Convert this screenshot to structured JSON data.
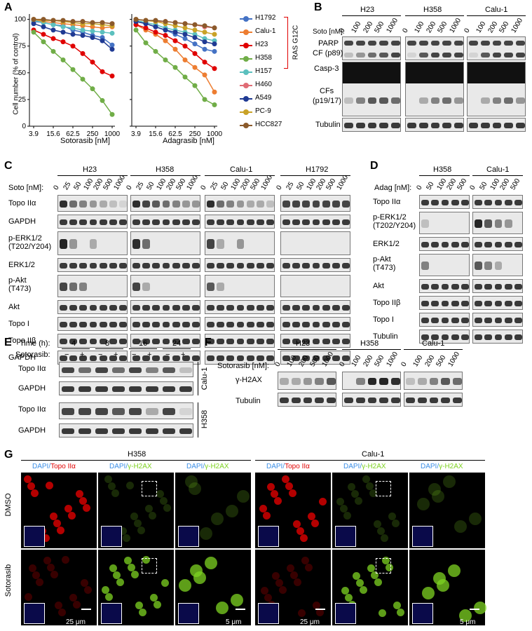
{
  "panel_labels": {
    "A": "A",
    "B": "B",
    "C": "C",
    "D": "D",
    "E": "E",
    "F": "F",
    "G": "G"
  },
  "chart_data": [
    {
      "type": "line",
      "xlabel": "Sotorasib [nM]",
      "ylabel": "Cell number (% of control)",
      "x": [
        3.9,
        7.8,
        15.6,
        31.3,
        62.5,
        125,
        250,
        500,
        1000
      ],
      "xticks": [
        "3.9",
        "15.6",
        "62.5",
        "250",
        "1000"
      ],
      "yticks": [
        "0",
        "25",
        "50",
        "75",
        "100"
      ],
      "ylim": [
        0,
        105
      ],
      "series": [
        {
          "name": "H1792",
          "color": "#4472c4",
          "values": [
            98,
            97,
            95,
            94,
            90,
            88,
            85,
            83,
            76
          ]
        },
        {
          "name": "Calu-1",
          "color": "#ed7d31",
          "values": [
            99,
            98,
            97,
            96,
            95,
            94,
            93,
            92,
            93
          ]
        },
        {
          "name": "H23",
          "color": "#e00000",
          "values": [
            90,
            86,
            82,
            79,
            75,
            68,
            60,
            51,
            47
          ]
        },
        {
          "name": "H358",
          "color": "#70ad47",
          "values": [
            88,
            79,
            70,
            62,
            53,
            44,
            35,
            24,
            11
          ]
        },
        {
          "name": "H157",
          "color": "#5bc0be",
          "values": [
            99,
            97,
            95,
            93,
            92,
            90,
            89,
            88,
            87
          ]
        },
        {
          "name": "H460",
          "color": "#e06c75",
          "values": [
            100,
            99,
            99,
            98,
            98,
            98,
            97,
            97,
            96
          ]
        },
        {
          "name": "A549",
          "color": "#1f3a93",
          "values": [
            96,
            93,
            90,
            88,
            86,
            85,
            83,
            80,
            72
          ]
        },
        {
          "name": "PC-9",
          "color": "#c9a227",
          "values": [
            100,
            99,
            99,
            98,
            97,
            96,
            96,
            95,
            94
          ]
        },
        {
          "name": "HCC827",
          "color": "#8b5a2b",
          "values": [
            100,
            100,
            99,
            99,
            98,
            98,
            97,
            97,
            96
          ]
        }
      ]
    },
    {
      "type": "line",
      "xlabel": "Adagrasib [nM]",
      "x": [
        3.9,
        7.8,
        15.6,
        31.3,
        62.5,
        125,
        250,
        500,
        1000
      ],
      "xticks": [
        "3.9",
        "15.6",
        "62.5",
        "250",
        "1000"
      ],
      "ylim": [
        0,
        105
      ],
      "series": [
        {
          "name": "H1792",
          "color": "#4472c4",
          "values": [
            98,
            96,
            93,
            90,
            86,
            82,
            77,
            72,
            70
          ]
        },
        {
          "name": "Calu-1",
          "color": "#ed7d31",
          "values": [
            95,
            90,
            86,
            80,
            72,
            62,
            55,
            48,
            32
          ]
        },
        {
          "name": "H23",
          "color": "#e00000",
          "values": [
            95,
            92,
            88,
            85,
            80,
            75,
            68,
            60,
            54
          ]
        },
        {
          "name": "H358",
          "color": "#70ad47",
          "values": [
            90,
            78,
            70,
            62,
            55,
            46,
            38,
            25,
            20
          ]
        },
        {
          "name": "H157",
          "color": "#5bc0be",
          "values": [
            99,
            97,
            95,
            92,
            90,
            88,
            86,
            82,
            80
          ]
        },
        {
          "name": "H460",
          "color": "#e06c75",
          "values": [
            100,
            99,
            98,
            98,
            97,
            96,
            95,
            93,
            92
          ]
        },
        {
          "name": "A549",
          "color": "#1f3a93",
          "values": [
            98,
            96,
            93,
            90,
            88,
            86,
            83,
            79,
            77
          ]
        },
        {
          "name": "PC-9",
          "color": "#c9a227",
          "values": [
            100,
            99,
            98,
            96,
            94,
            92,
            90,
            88,
            86
          ]
        },
        {
          "name": "HCC827",
          "color": "#8b5a2b",
          "values": [
            100,
            99,
            99,
            98,
            97,
            96,
            95,
            94,
            92
          ]
        }
      ]
    }
  ],
  "legend_bracket": "RAS G12C",
  "B": {
    "groups": [
      "H23",
      "H358",
      "Calu-1"
    ],
    "dose_label": "Soto [nM]:",
    "doses": [
      "0",
      "100",
      "200",
      "500",
      "1000"
    ],
    "rows": [
      "PARP",
      "CF (p89)",
      "Casp-3",
      "CFs",
      "(p19/17)",
      "Tubulin"
    ]
  },
  "C": {
    "groups": [
      "H23",
      "H358",
      "Calu-1",
      "H1792"
    ],
    "dose_label": "Soto [nM]:",
    "doses": [
      "0",
      "25",
      "50",
      "100",
      "200",
      "500",
      "1000"
    ],
    "rows": [
      "Topo IIα",
      "GAPDH",
      "p-ERK1/2",
      "(T202/Y204)",
      "ERK1/2",
      "p-Akt",
      "(T473)",
      "Akt",
      "Topo I",
      "Topo IIβ",
      "GAPDH"
    ]
  },
  "D": {
    "groups": [
      "H358",
      "Calu-1"
    ],
    "dose_label": "Adag [nM]:",
    "doses": [
      "0",
      "50",
      "100",
      "200",
      "500"
    ],
    "rows": [
      "Topo IIα",
      "p-ERK1/2",
      "(T202/Y204)",
      "ERK1/2",
      "p-Akt",
      "(T473)",
      "Akt",
      "Topo IIβ",
      "Topo I",
      "Tubulin"
    ]
  },
  "E": {
    "time_label": "Time (h):",
    "times": [
      "4",
      "8",
      "16",
      "24"
    ],
    "treat_label": "Sotorasib:",
    "minus": "−",
    "plus": "+",
    "rows": [
      "Topo IIα",
      "GAPDH",
      "Topo IIα",
      "GAPDH"
    ],
    "cells": [
      "Calu-1",
      "H358"
    ]
  },
  "F": {
    "groups": [
      "H23",
      "H358",
      "Calu-1"
    ],
    "dose_label": "Sotorasib [nM]:",
    "doses": [
      "0",
      "100",
      "200",
      "500",
      "1000"
    ],
    "rows": [
      "γ-H2AX",
      "Tubulin"
    ]
  },
  "G": {
    "groups": [
      "H358",
      "Calu-1"
    ],
    "col_dapi": "DAPI/",
    "col_topo": "Topo IIα",
    "col_h2ax": "γ-H2AX",
    "rows": [
      "DMSO",
      "Sotorasib"
    ],
    "scale1": "25 μm",
    "scale2": "5 μm"
  },
  "colors": {
    "dapi": "#3a8ee6",
    "red": "#e00000",
    "green": "#7ed321"
  }
}
